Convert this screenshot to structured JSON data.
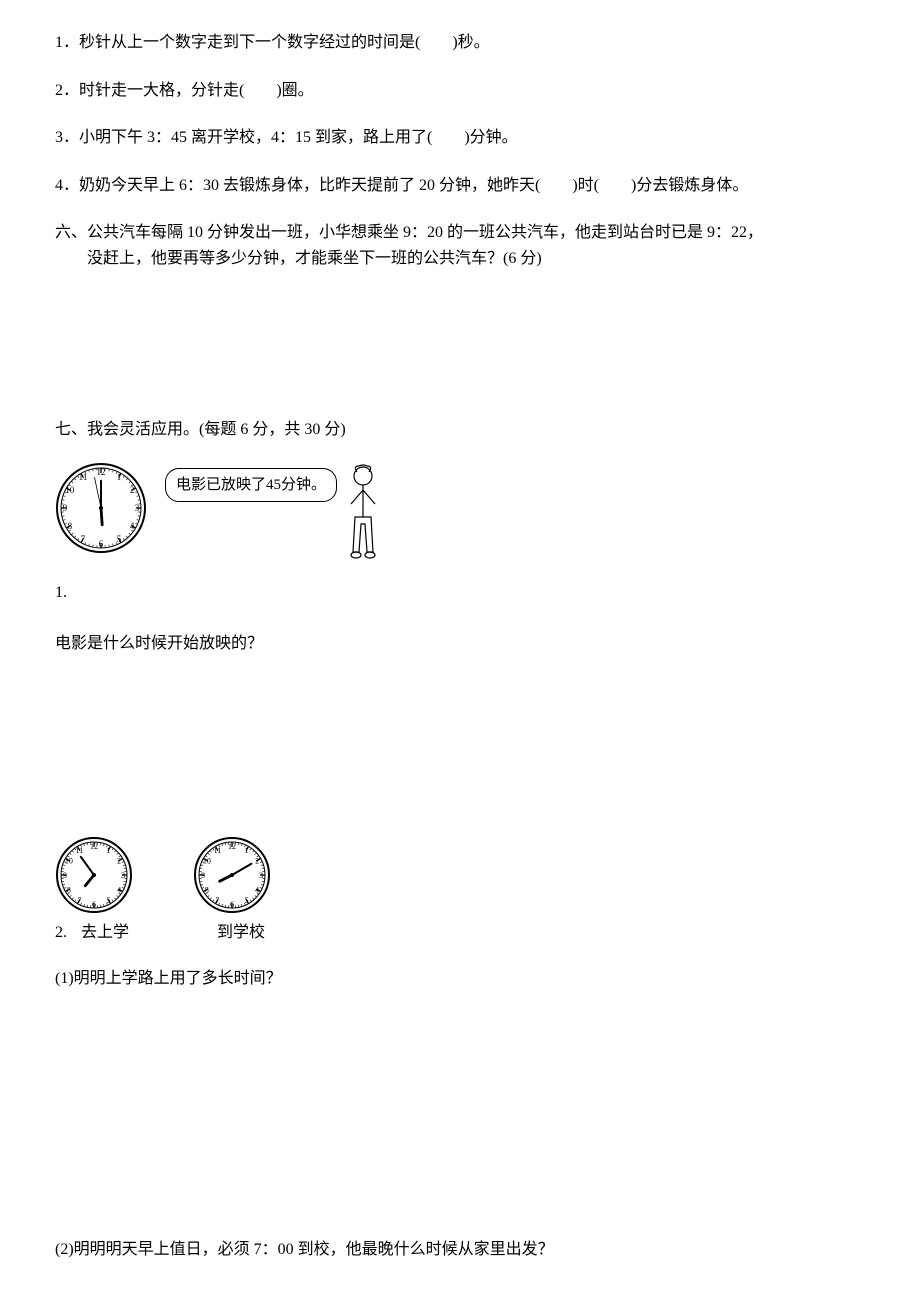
{
  "q1": "1．秒针从上一个数字走到下一个数字经过的时间是(　　)秒。",
  "q2": "2．时针走一大格，分针走(　　)圈。",
  "q3": "3．小明下午 3：45 离开学校，4：15 到家，路上用了(　　)分钟。",
  "q4": "4．奶奶今天早上 6：30 去锻炼身体，比昨天提前了 20 分钟，她昨天(　　)时(　　)分去锻炼身体。",
  "section6_line1": "六、公共汽车每隔 10 分钟发出一班，小华想乘坐 9：20 的一班公共汽车，他走到站台时已是 9：22，",
  "section6_line2": "没赶上，他要再等多少分钟，才能乘坐下一班的公共汽车？(6 分)",
  "section7_title": "七、我会灵活应用。(每题 6 分，共 30 分)",
  "speech_text": "电影已放映了45分钟。",
  "q7_1_num": "1.",
  "q7_1_prompt": "电影是什么时候开始放映的？",
  "q7_2_num": "2.",
  "q7_2_label_left": "去上学",
  "q7_2_label_right": "到学校",
  "q7_2_sub1": "(1)明明上学路上用了多长时间？",
  "q7_2_sub2": "(2)明明明天早上值日，必须 7：00 到校，他最晚什么时候从家里出发？",
  "clocks": {
    "c1": {
      "hour_angle": 176,
      "minute_angle": 0,
      "show_second": true,
      "second_angle": 348,
      "size": 92,
      "numbers_r": 36
    },
    "c2": {
      "hour_angle": 219,
      "minute_angle": 324,
      "show_second": false,
      "size": 78,
      "numbers_r": 29
    },
    "c3": {
      "hour_angle": 243,
      "minute_angle": 60,
      "show_second": false,
      "size": 78,
      "numbers_r": 29
    }
  },
  "colors": {
    "text": "#000000",
    "bg": "#ffffff",
    "stroke": "#000000"
  }
}
